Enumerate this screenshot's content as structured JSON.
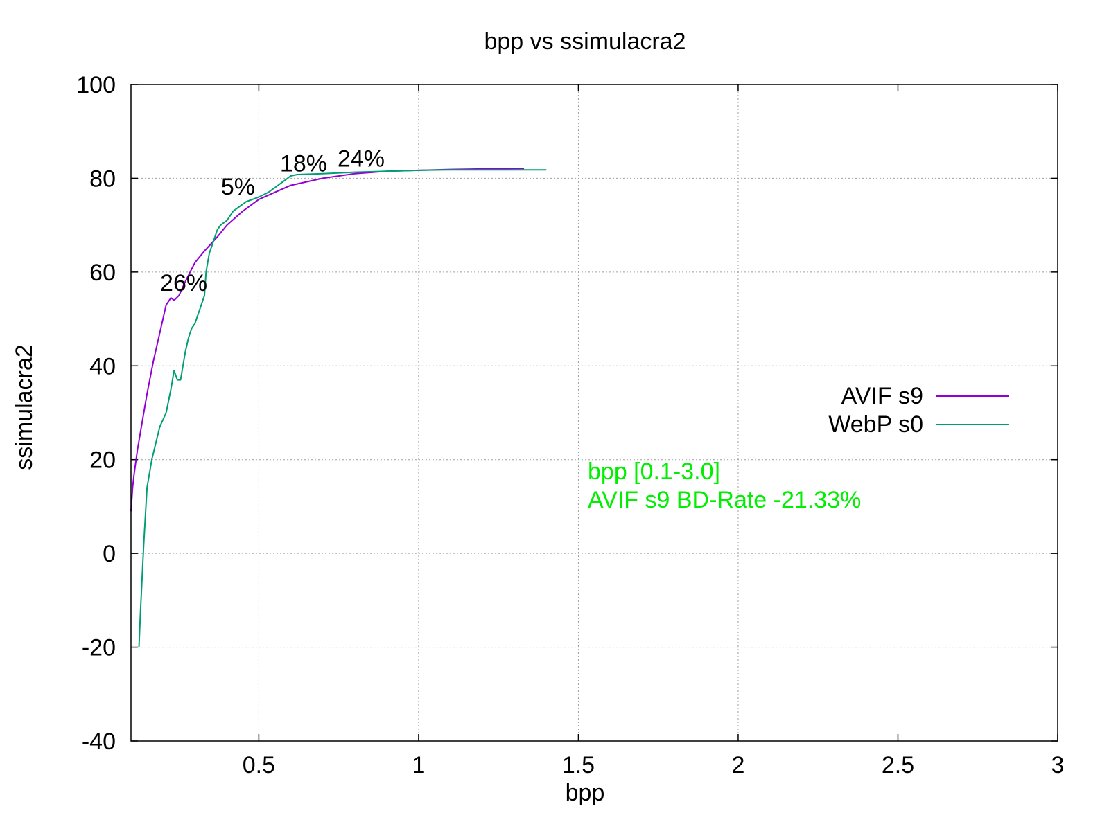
{
  "chart_data": {
    "type": "line",
    "title": "bpp vs ssimulacra2",
    "xlabel": "bpp",
    "ylabel": "ssimulacra2",
    "xlim": [
      0.1,
      3.0
    ],
    "ylim": [
      -40,
      100
    ],
    "grid": true,
    "x_ticks": [
      0.5,
      1,
      1.5,
      2,
      2.5,
      3
    ],
    "x_tick_labels": [
      "0.5",
      "1",
      "1.5",
      "2",
      "2.5",
      "3"
    ],
    "y_ticks": [
      -40,
      -20,
      0,
      20,
      40,
      60,
      80,
      100
    ],
    "y_tick_labels": [
      "-40",
      "-20",
      "0",
      "20",
      "40",
      "60",
      "80",
      "100"
    ],
    "legend_position": "right",
    "series": [
      {
        "name": "AVIF s9",
        "color": "#9400d3",
        "x": [
          0.1,
          0.105,
          0.11,
          0.12,
          0.13,
          0.15,
          0.17,
          0.19,
          0.21,
          0.225,
          0.235,
          0.25,
          0.27,
          0.3,
          0.33,
          0.37,
          0.4,
          0.45,
          0.5,
          0.55,
          0.6,
          0.7,
          0.8,
          0.9,
          1.0,
          1.1,
          1.2,
          1.33
        ],
        "values": [
          9,
          14,
          17,
          22,
          26,
          34,
          41,
          47,
          53,
          54.5,
          54,
          55,
          58,
          62,
          64.5,
          67.5,
          70,
          73,
          75.5,
          77,
          78.5,
          80,
          81,
          81.5,
          81.7,
          81.9,
          82,
          82.1
        ]
      },
      {
        "name": "WebP s0",
        "color": "#009e73",
        "x": [
          0.125,
          0.13,
          0.14,
          0.15,
          0.165,
          0.19,
          0.21,
          0.225,
          0.235,
          0.245,
          0.255,
          0.26,
          0.265,
          0.27,
          0.28,
          0.29,
          0.3,
          0.31,
          0.32,
          0.33,
          0.335,
          0.34,
          0.345,
          0.35,
          0.36,
          0.37,
          0.38,
          0.4,
          0.42,
          0.44,
          0.46,
          0.5,
          0.53,
          0.55,
          0.57,
          0.59,
          0.6,
          0.62,
          0.7,
          0.8,
          0.9,
          1.0,
          1.1,
          1.2,
          1.4
        ],
        "values": [
          -20,
          -12,
          2,
          14,
          20,
          27,
          30,
          35,
          39,
          37,
          37,
          39,
          41,
          43,
          46,
          48,
          49,
          51,
          53,
          55,
          60,
          62,
          64,
          65,
          67,
          69,
          70,
          71,
          73,
          74,
          75,
          76,
          77,
          78,
          79,
          80,
          80.5,
          80.8,
          81,
          81.3,
          81.5,
          81.7,
          81.8,
          81.8,
          81.8
        ]
      }
    ],
    "annotations": [
      {
        "label": "26%",
        "x": 0.265,
        "y": 56
      },
      {
        "label": "5%",
        "x": 0.435,
        "y": 76.5
      },
      {
        "label": "18%",
        "x": 0.64,
        "y": 81.5
      },
      {
        "label": "24%",
        "x": 0.82,
        "y": 82.5
      }
    ],
    "info_lines": [
      "bpp [0.1-3.0]",
      "AVIF s9 BD-Rate -21.33%"
    ],
    "info_color": "#00ee00",
    "info_position": [
      1.55,
      14
    ]
  }
}
